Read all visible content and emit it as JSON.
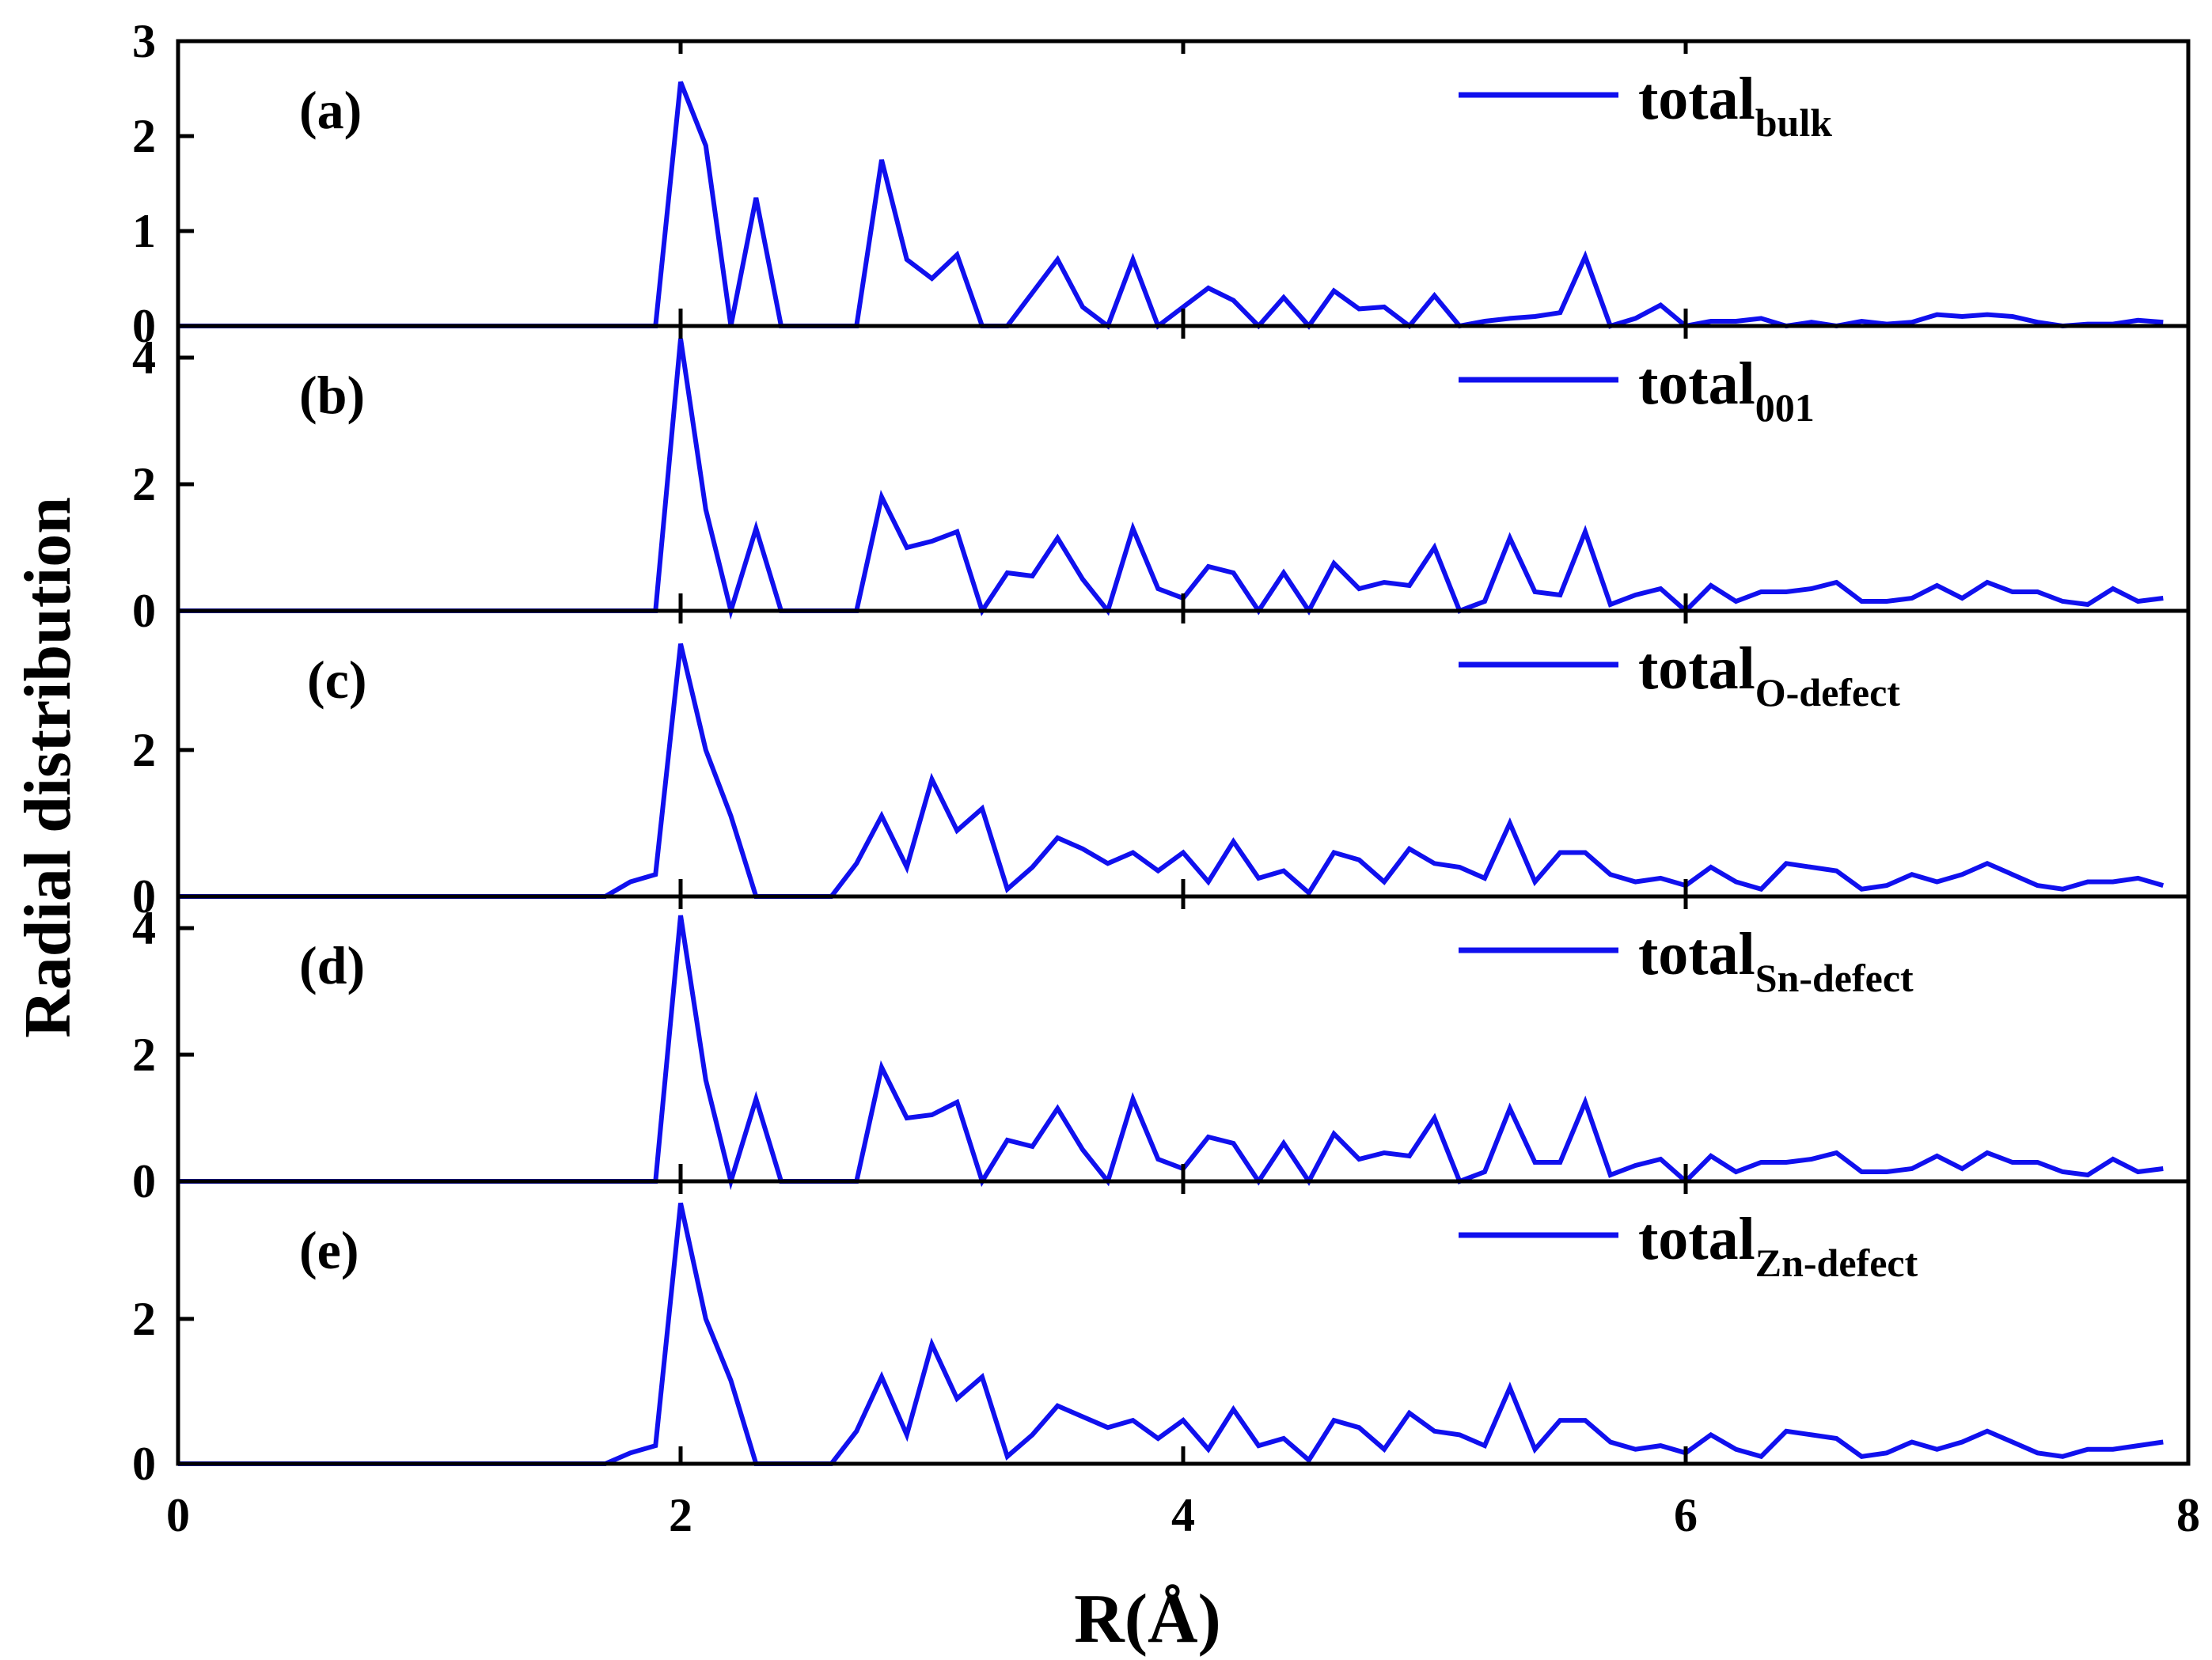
{
  "chart_data": {
    "type": "line",
    "xlabel": "R(Å)",
    "ylabel": "Radial distribution",
    "xlim": [
      0,
      8
    ],
    "x_ticks": [
      "0",
      "2",
      "4",
      "6",
      "8"
    ],
    "line_color": "#1010ee",
    "x": [
      0,
      0.1,
      0.2,
      0.3,
      0.4,
      0.5,
      0.6,
      0.7,
      0.8,
      0.9,
      1.0,
      1.1,
      1.2,
      1.3,
      1.4,
      1.5,
      1.6,
      1.7,
      1.8,
      1.9,
      2.0,
      2.1,
      2.2,
      2.3,
      2.4,
      2.5,
      2.6,
      2.7,
      2.8,
      2.9,
      3.0,
      3.1,
      3.2,
      3.3,
      3.4,
      3.5,
      3.6,
      3.7,
      3.8,
      3.9,
      4.0,
      4.1,
      4.2,
      4.3,
      4.4,
      4.5,
      4.6,
      4.7,
      4.8,
      4.9,
      5.0,
      5.1,
      5.2,
      5.3,
      5.4,
      5.5,
      5.6,
      5.7,
      5.8,
      5.9,
      6.0,
      6.1,
      6.2,
      6.3,
      6.4,
      6.5,
      6.6,
      6.7,
      6.8,
      6.9,
      7.0,
      7.1,
      7.2,
      7.3,
      7.4,
      7.5,
      7.6,
      7.7,
      7.8,
      7.9
    ],
    "panels": [
      {
        "label": "(a)",
        "legend_main": "total",
        "legend_sub": "bulk",
        "ylim": [
          0,
          3
        ],
        "y_ticks": [
          "0",
          "1",
          "2",
          "3"
        ],
        "y_tick_values": [
          0,
          1,
          2,
          3
        ],
        "values": [
          0,
          0,
          0,
          0,
          0,
          0,
          0,
          0,
          0,
          0,
          0,
          0,
          0,
          0,
          0,
          0,
          0,
          0,
          0,
          0,
          2.57,
          1.9,
          0,
          1.35,
          0,
          0,
          0,
          0,
          1.75,
          0.7,
          0.5,
          0.75,
          0,
          0,
          0.35,
          0.7,
          0.2,
          0,
          0.7,
          0,
          0.2,
          0.4,
          0.27,
          0,
          0.3,
          0,
          0.37,
          0.18,
          0.2,
          0,
          0.32,
          0,
          0.05,
          0.08,
          0.1,
          0.14,
          0.73,
          0,
          0.08,
          0.22,
          0,
          0.05,
          0.05,
          0.08,
          0,
          0.04,
          0,
          0.05,
          0.02,
          0.04,
          0.12,
          0.1,
          0.12,
          0.1,
          0.04,
          0,
          0.02,
          0.02,
          0.06,
          0.04
        ]
      },
      {
        "label": "(b)",
        "legend_main": "total",
        "legend_sub": "001",
        "ylim": [
          0,
          4.5
        ],
        "y_ticks": [
          "0",
          "2",
          "4"
        ],
        "y_tick_values": [
          0,
          2,
          4
        ],
        "values": [
          0,
          0,
          0,
          0,
          0,
          0,
          0,
          0,
          0,
          0,
          0,
          0,
          0,
          0,
          0,
          0,
          0,
          0,
          0,
          0,
          4.3,
          1.6,
          0,
          1.3,
          0,
          0,
          0,
          0,
          1.8,
          1.0,
          1.1,
          1.25,
          0,
          0.6,
          0.55,
          1.15,
          0.5,
          0,
          1.3,
          0.35,
          0.2,
          0.7,
          0.6,
          0,
          0.6,
          0,
          0.75,
          0.35,
          0.45,
          0.4,
          1.0,
          0,
          0.15,
          1.15,
          0.3,
          0.25,
          1.25,
          0.1,
          0.25,
          0.35,
          0,
          0.4,
          0.15,
          0.3,
          0.3,
          0.35,
          0.45,
          0.15,
          0.15,
          0.2,
          0.4,
          0.2,
          0.45,
          0.3,
          0.3,
          0.15,
          0.1,
          0.35,
          0.15,
          0.2
        ]
      },
      {
        "label": "(c)",
        "legend_main": "total",
        "legend_sub": "O-defect",
        "ylim": [
          0,
          3.9
        ],
        "y_ticks": [
          "0",
          "2"
        ],
        "y_tick_values": [
          0,
          2
        ],
        "values": [
          0,
          0,
          0,
          0,
          0,
          0,
          0,
          0,
          0,
          0,
          0,
          0,
          0,
          0,
          0,
          0,
          0,
          0,
          0.2,
          0.3,
          3.45,
          2.0,
          1.1,
          0,
          0,
          0,
          0,
          0.45,
          1.1,
          0.4,
          1.6,
          0.9,
          1.2,
          0.1,
          0.4,
          0.8,
          0.65,
          0.45,
          0.6,
          0.35,
          0.6,
          0.2,
          0.75,
          0.25,
          0.35,
          0.05,
          0.6,
          0.5,
          0.2,
          0.65,
          0.45,
          0.4,
          0.25,
          1.0,
          0.2,
          0.6,
          0.6,
          0.3,
          0.2,
          0.25,
          0.15,
          0.4,
          0.2,
          0.1,
          0.45,
          0.4,
          0.35,
          0.1,
          0.15,
          0.3,
          0.2,
          0.3,
          0.45,
          0.3,
          0.15,
          0.1,
          0.2,
          0.2,
          0.25,
          0.15
        ]
      },
      {
        "label": "(d)",
        "legend_main": "total",
        "legend_sub": "Sn-defect",
        "ylim": [
          0,
          4.5
        ],
        "y_ticks": [
          "0",
          "2",
          "4"
        ],
        "y_tick_values": [
          0,
          2,
          4
        ],
        "values": [
          0,
          0,
          0,
          0,
          0,
          0,
          0,
          0,
          0,
          0,
          0,
          0,
          0,
          0,
          0,
          0,
          0,
          0,
          0,
          0,
          4.2,
          1.6,
          0,
          1.3,
          0,
          0,
          0,
          0,
          1.8,
          1.0,
          1.05,
          1.25,
          0,
          0.65,
          0.55,
          1.15,
          0.5,
          0,
          1.3,
          0.35,
          0.2,
          0.7,
          0.6,
          0,
          0.6,
          0,
          0.75,
          0.35,
          0.45,
          0.4,
          1.0,
          0,
          0.15,
          1.15,
          0.3,
          0.3,
          1.25,
          0.1,
          0.25,
          0.35,
          0,
          0.4,
          0.15,
          0.3,
          0.3,
          0.35,
          0.45,
          0.15,
          0.15,
          0.2,
          0.4,
          0.2,
          0.45,
          0.3,
          0.3,
          0.15,
          0.1,
          0.35,
          0.15,
          0.2
        ]
      },
      {
        "label": "(e)",
        "legend_main": "total",
        "legend_sub": "Zn-defect",
        "ylim": [
          0,
          3.9
        ],
        "y_ticks": [
          "0",
          "2"
        ],
        "y_tick_values": [
          0,
          2
        ],
        "values": [
          0,
          0,
          0,
          0,
          0,
          0,
          0,
          0,
          0,
          0,
          0,
          0,
          0,
          0,
          0,
          0,
          0,
          0,
          0.15,
          0.25,
          3.6,
          2.0,
          1.15,
          0,
          0,
          0,
          0,
          0.45,
          1.2,
          0.4,
          1.65,
          0.9,
          1.2,
          0.1,
          0.4,
          0.8,
          0.65,
          0.5,
          0.6,
          0.35,
          0.6,
          0.2,
          0.75,
          0.25,
          0.35,
          0.05,
          0.6,
          0.5,
          0.2,
          0.7,
          0.45,
          0.4,
          0.25,
          1.05,
          0.2,
          0.6,
          0.6,
          0.3,
          0.2,
          0.25,
          0.15,
          0.4,
          0.2,
          0.1,
          0.45,
          0.4,
          0.35,
          0.1,
          0.15,
          0.3,
          0.2,
          0.3,
          0.45,
          0.3,
          0.15,
          0.1,
          0.2,
          0.2,
          0.25,
          0.3
        ]
      }
    ]
  }
}
